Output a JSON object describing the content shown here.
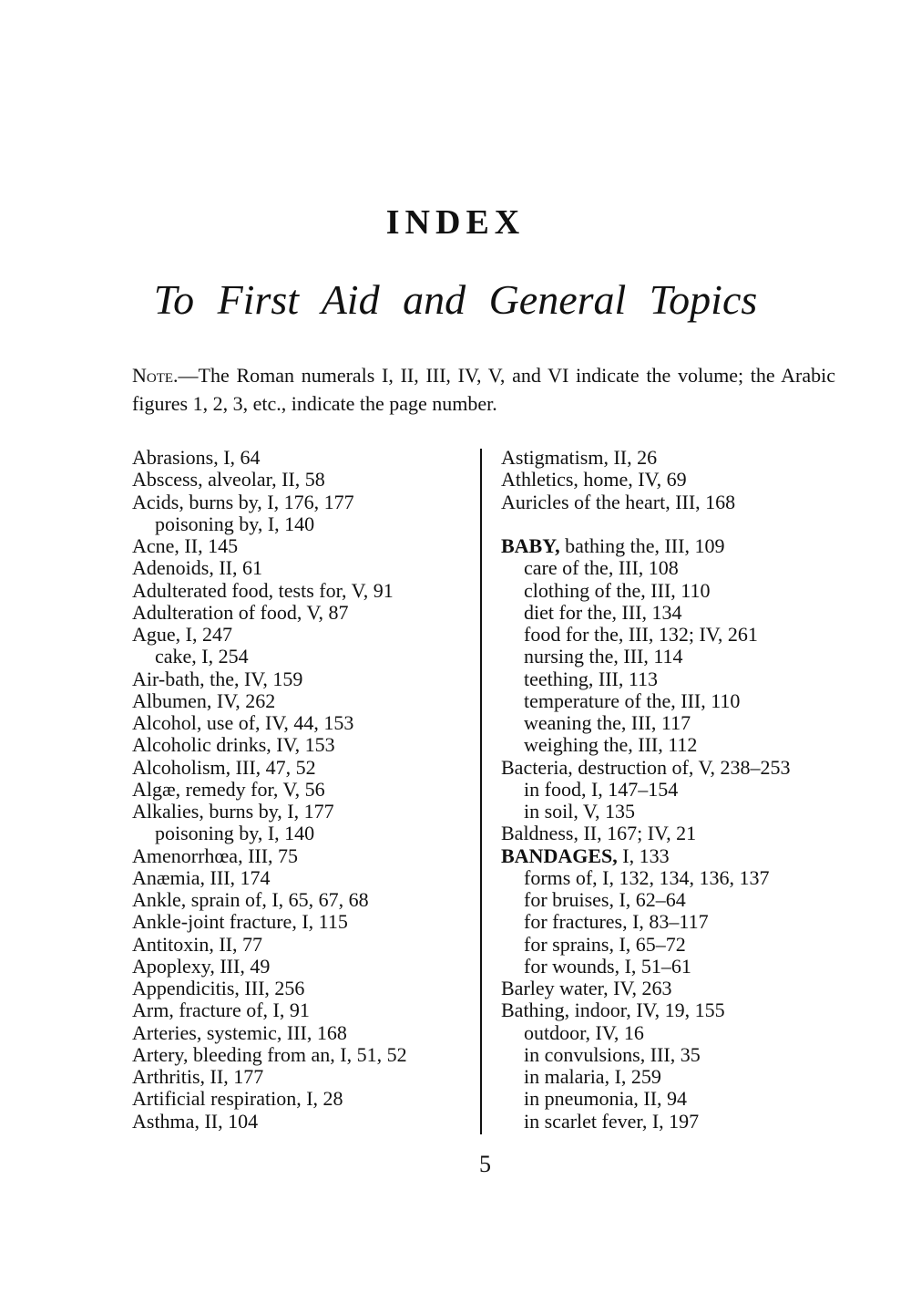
{
  "title": "INDEX",
  "subtitle": "To First Aid and General Topics",
  "note": {
    "label": "Note.",
    "text": "—The Roman numerals I, II, III, IV, V, and VI indicate the volume; the Arabic figures 1, 2, 3, etc., indicate the page number."
  },
  "left_column": [
    {
      "text": "Abrasions, I, 64"
    },
    {
      "text": "Abscess, alveolar, II, 58"
    },
    {
      "text": "Acids, burns by, I, 176, 177"
    },
    {
      "text": "poisoning by, I, 140",
      "sub": true
    },
    {
      "text": "Acne, II, 145"
    },
    {
      "text": "Adenoids, II, 61"
    },
    {
      "text": "Adulterated food, tests for, V, 91"
    },
    {
      "text": "Adulteration of food, V, 87"
    },
    {
      "text": "Ague, I, 247"
    },
    {
      "text": "cake, I, 254",
      "sub": true
    },
    {
      "text": "Air-bath, the, IV, 159"
    },
    {
      "text": "Albumen, IV, 262"
    },
    {
      "text": "Alcohol, use of, IV, 44, 153"
    },
    {
      "text": "Alcoholic drinks, IV, 153"
    },
    {
      "text": "Alcoholism, III, 47, 52"
    },
    {
      "text": "Algæ, remedy for, V, 56"
    },
    {
      "text": "Alkalies, burns by, I, 177"
    },
    {
      "text": "poisoning by, I, 140",
      "sub": true
    },
    {
      "text": "Amenorrhœa, III, 75"
    },
    {
      "text": "Anæmia, III, 174"
    },
    {
      "text": "Ankle, sprain of, I, 65, 67, 68"
    },
    {
      "text": "Ankle-joint fracture, I, 115"
    },
    {
      "text": "Antitoxin, II, 77"
    },
    {
      "text": "Apoplexy, III, 49"
    },
    {
      "text": "Appendicitis, III, 256"
    },
    {
      "text": "Arm, fracture of, I, 91"
    },
    {
      "text": "Arteries, systemic, III, 168"
    },
    {
      "text": "Artery, bleeding from an, I, 51, 52"
    },
    {
      "text": "Arthritis, II, 177"
    },
    {
      "text": "Artificial respiration, I, 28"
    },
    {
      "text": "Asthma, II, 104"
    }
  ],
  "right_column": [
    {
      "text": "Astigmatism, II, 26"
    },
    {
      "text": "Athletics, home, IV, 69"
    },
    {
      "text": "Auricles of the heart, III, 168"
    },
    {
      "text": ""
    },
    {
      "head": "BABY,",
      "text": " bathing the, III, 109"
    },
    {
      "text": "care of the, III, 108",
      "sub": true
    },
    {
      "text": "clothing of the, III, 110",
      "sub": true
    },
    {
      "text": "diet for the, III, 134",
      "sub": true
    },
    {
      "text": "food for the, III, 132; IV, 261",
      "sub": true
    },
    {
      "text": "nursing the, III, 114",
      "sub": true
    },
    {
      "text": "teething, III, 113",
      "sub": true
    },
    {
      "text": "temperature of the, III, 110",
      "sub": true
    },
    {
      "text": "weaning the, III, 117",
      "sub": true
    },
    {
      "text": "weighing the, III, 112",
      "sub": true
    },
    {
      "text": "Bacteria, destruction of, V, 238–253"
    },
    {
      "text": "in food, I, 147–154",
      "sub": true
    },
    {
      "text": "in soil, V, 135",
      "sub": true
    },
    {
      "text": "Baldness, II, 167; IV, 21"
    },
    {
      "head": "BANDAGES,",
      "text": " I, 133"
    },
    {
      "text": "forms of, I, 132, 134, 136, 137",
      "sub": true
    },
    {
      "text": "for bruises, I, 62–64",
      "sub": true
    },
    {
      "text": "for fractures, I, 83–117",
      "sub": true
    },
    {
      "text": "for sprains, I, 65–72",
      "sub": true
    },
    {
      "text": "for wounds, I, 51–61",
      "sub": true
    },
    {
      "text": "Barley water, IV, 263"
    },
    {
      "text": "Bathing, indoor, IV, 19, 155"
    },
    {
      "text": "outdoor, IV, 16",
      "sub": true
    },
    {
      "text": "in convulsions, III, 35",
      "sub": true
    },
    {
      "text": "in malaria, I, 259",
      "sub": true
    },
    {
      "text": "in pneumonia, II, 94",
      "sub": true
    },
    {
      "text": "in scarlet fever, I, 197",
      "sub": true
    }
  ],
  "page_number": "5"
}
